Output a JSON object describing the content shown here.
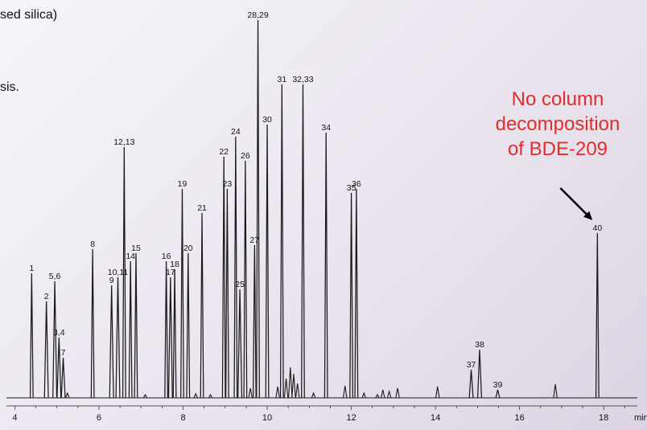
{
  "text": {
    "line1": "sed silica)",
    "line2": "sis."
  },
  "annotation": {
    "line1": "No column",
    "line2": "decomposition",
    "line3": "of BDE-209",
    "color": "#e02d2d"
  },
  "chart_data": {
    "type": "line",
    "xlabel": "min",
    "ylabel": "",
    "xlim": [
      3.8,
      18.8
    ],
    "x_ticks": [
      "4",
      "6",
      "8",
      "10",
      "12",
      "14",
      "16",
      "18"
    ],
    "grid": false,
    "line_color": "#1a1a1a",
    "peaks": [
      {
        "label": "1",
        "x": 4.4,
        "y": 155
      },
      {
        "label": "2",
        "x": 4.75,
        "y": 120
      },
      {
        "label": "5,6",
        "x": 4.95,
        "y": 145
      },
      {
        "label": "3,4",
        "x": 5.05,
        "y": 75
      },
      {
        "label": "7",
        "x": 5.15,
        "y": 50
      },
      {
        "label": "8",
        "x": 5.85,
        "y": 185
      },
      {
        "label": "9",
        "x": 6.3,
        "y": 140
      },
      {
        "label": "10,11",
        "x": 6.45,
        "y": 150
      },
      {
        "label": "12,13",
        "x": 6.6,
        "y": 312
      },
      {
        "label": "14",
        "x": 6.75,
        "y": 170
      },
      {
        "label": "15",
        "x": 6.88,
        "y": 180
      },
      {
        "label": "16",
        "x": 7.6,
        "y": 170
      },
      {
        "label": "17",
        "x": 7.7,
        "y": 150
      },
      {
        "label": "18",
        "x": 7.8,
        "y": 160
      },
      {
        "label": "19",
        "x": 7.98,
        "y": 260
      },
      {
        "label": "20",
        "x": 8.12,
        "y": 180
      },
      {
        "label": "21",
        "x": 8.45,
        "y": 230
      },
      {
        "label": "22",
        "x": 8.97,
        "y": 300
      },
      {
        "label": "23",
        "x": 9.05,
        "y": 260
      },
      {
        "label": "24",
        "x": 9.25,
        "y": 325
      },
      {
        "label": "25",
        "x": 9.35,
        "y": 135
      },
      {
        "label": "26",
        "x": 9.48,
        "y": 295
      },
      {
        "label": "27",
        "x": 9.7,
        "y": 190
      },
      {
        "label": "28,29",
        "x": 9.78,
        "y": 470
      },
      {
        "label": "30",
        "x": 10.0,
        "y": 340
      },
      {
        "label": "31",
        "x": 10.35,
        "y": 390
      },
      {
        "label": "32,33",
        "x": 10.85,
        "y": 390
      },
      {
        "label": "34",
        "x": 11.4,
        "y": 330
      },
      {
        "label": "35",
        "x": 12.0,
        "y": 255
      },
      {
        "label": "36",
        "x": 12.12,
        "y": 260
      },
      {
        "label": "37",
        "x": 14.85,
        "y": 35
      },
      {
        "label": "38",
        "x": 15.05,
        "y": 60
      },
      {
        "label": "39",
        "x": 15.48,
        "y": 10
      },
      {
        "label": "40",
        "x": 17.85,
        "y": 205
      }
    ],
    "minor_peaks": [
      {
        "x": 5.25,
        "y": 6
      },
      {
        "x": 7.1,
        "y": 4
      },
      {
        "x": 8.3,
        "y": 5
      },
      {
        "x": 8.65,
        "y": 4
      },
      {
        "x": 9.6,
        "y": 12
      },
      {
        "x": 10.25,
        "y": 14
      },
      {
        "x": 10.45,
        "y": 24
      },
      {
        "x": 10.55,
        "y": 38
      },
      {
        "x": 10.63,
        "y": 30
      },
      {
        "x": 10.72,
        "y": 18
      },
      {
        "x": 11.1,
        "y": 6
      },
      {
        "x": 11.85,
        "y": 15
      },
      {
        "x": 12.3,
        "y": 6
      },
      {
        "x": 12.62,
        "y": 4
      },
      {
        "x": 12.75,
        "y": 10
      },
      {
        "x": 12.9,
        "y": 8
      },
      {
        "x": 13.1,
        "y": 12
      },
      {
        "x": 14.05,
        "y": 14
      },
      {
        "x": 16.85,
        "y": 17
      }
    ],
    "annotation_arrow": {
      "target_peak": "40"
    }
  }
}
